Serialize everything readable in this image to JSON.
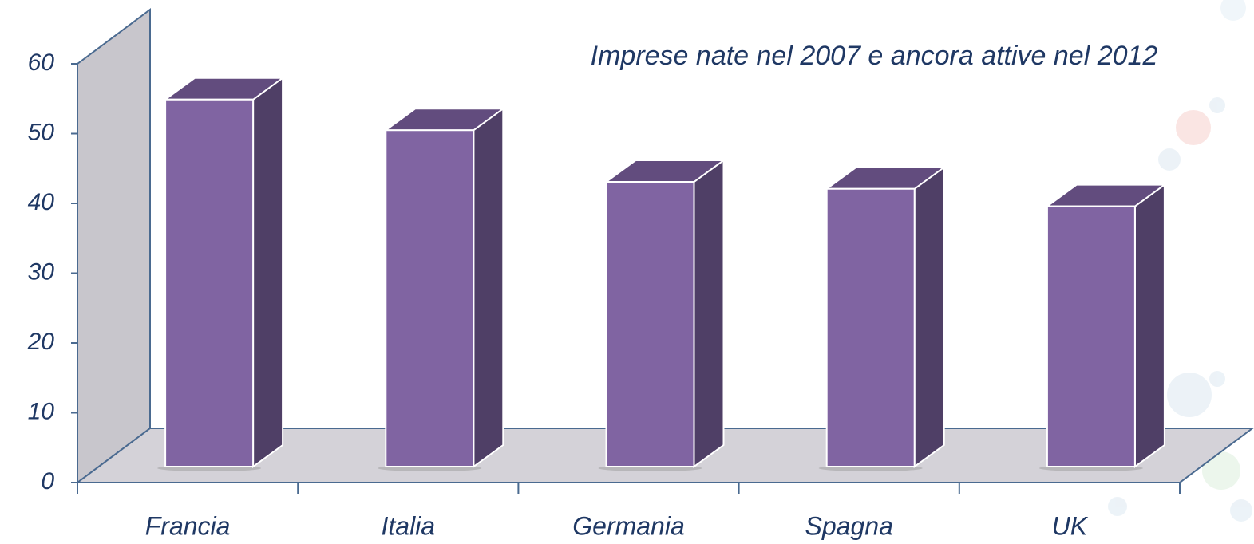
{
  "chart_data": {
    "type": "bar3d",
    "title": "Imprese nate nel 2007 e ancora attive nel 2012",
    "categories": [
      "Francia",
      "Italia",
      "Germania",
      "Spagna",
      "UK"
    ],
    "values": [
      52.6,
      48.2,
      40.8,
      39.8,
      37.3
    ],
    "color": "#8064a2",
    "ylim": [
      0,
      60
    ],
    "yticks": [
      0,
      10,
      20,
      30,
      40,
      50,
      60
    ]
  }
}
